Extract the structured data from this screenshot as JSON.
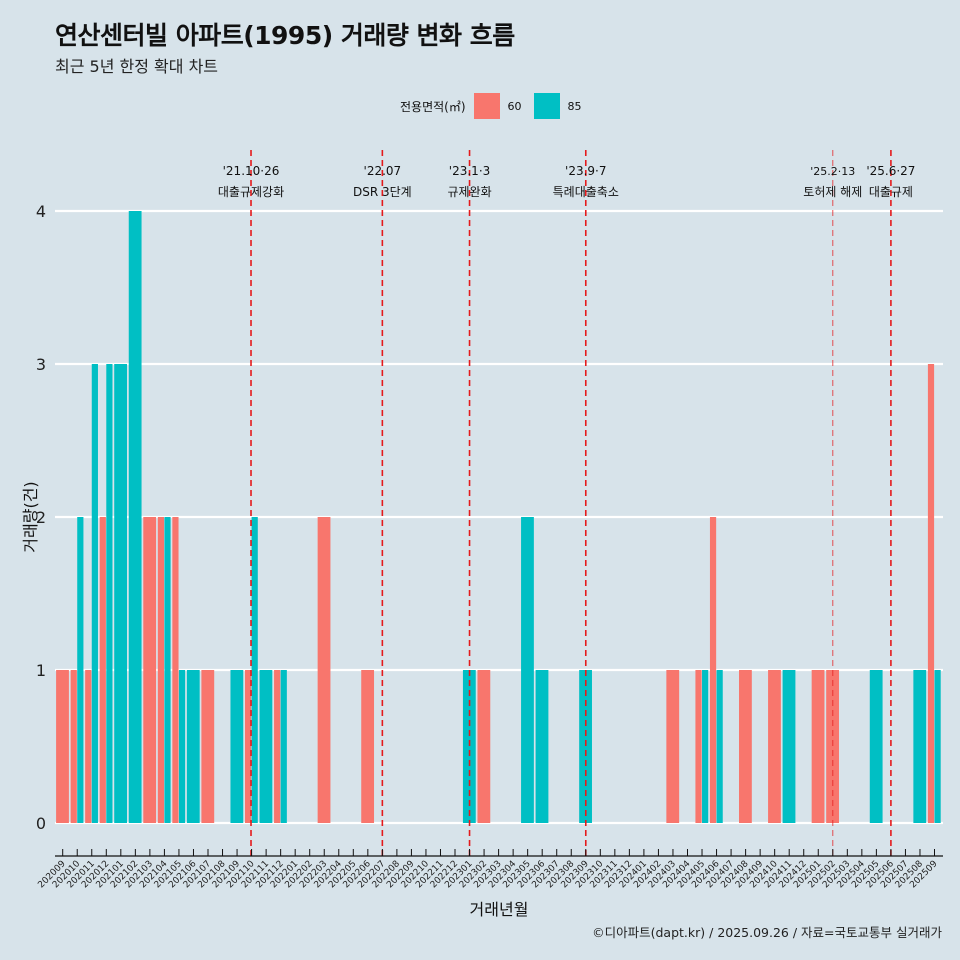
{
  "header": {
    "title": "연산센터빌 아파트(1995) 거래량 변화 흐름",
    "subtitle": "최근 5년 한정 확대 차트"
  },
  "legend": {
    "title": "전용면적(㎡)",
    "items": [
      {
        "label": "60",
        "color": "#f8766d"
      },
      {
        "label": "85",
        "color": "#00bfc4"
      }
    ]
  },
  "caption": "©디아파트(dapt.kr) / 2025.09.26 / 자료=국토교통부 실거래가",
  "chart_data": {
    "type": "bar",
    "title": "연산센터빌 아파트(1995) 거래량 변화 흐름",
    "subtitle": "최근 5년 한정 확대 차트",
    "xlabel": "거래년월",
    "ylabel": "거래량(건)",
    "ylim": [
      0,
      4
    ],
    "yticks": [
      0,
      1,
      2,
      3,
      4
    ],
    "grid": "horizontal",
    "legend_position": "top",
    "bar_mode": "dodge",
    "categories": [
      "202009",
      "202010",
      "202011",
      "202012",
      "202101",
      "202102",
      "202103",
      "202104",
      "202105",
      "202106",
      "202107",
      "202108",
      "202109",
      "202110",
      "202111",
      "202112",
      "202201",
      "202202",
      "202203",
      "202204",
      "202205",
      "202206",
      "202207",
      "202208",
      "202209",
      "202210",
      "202211",
      "202212",
      "202301",
      "202302",
      "202303",
      "202304",
      "202305",
      "202306",
      "202307",
      "202308",
      "202309",
      "202310",
      "202311",
      "202312",
      "202401",
      "202402",
      "202403",
      "202404",
      "202405",
      "202406",
      "202407",
      "202408",
      "202409",
      "202410",
      "202411",
      "202412",
      "202501",
      "202502",
      "202503",
      "202504",
      "202505",
      "202506",
      "202507",
      "202508",
      "202509"
    ],
    "series": [
      {
        "name": "60",
        "color": "#f8766d",
        "values": {
          "202009": 1,
          "202010": 1,
          "202011": 1,
          "202012": 2,
          "202103": 2,
          "202104": 2,
          "202105": 2,
          "202107": 1,
          "202110": 1,
          "202112": 1,
          "202203": 2,
          "202206": 1,
          "202302": 1,
          "202403": 1,
          "202405": 1,
          "202406": 2,
          "202408": 1,
          "202410": 1,
          "202501": 1,
          "202502": 1,
          "202509": 3
        }
      },
      {
        "name": "85",
        "color": "#00bfc4",
        "values": {
          "202010": 2,
          "202011": 3,
          "202012": 3,
          "202101": 3,
          "202102": 4,
          "202104": 2,
          "202105": 1,
          "202106": 1,
          "202109": 1,
          "202110": 2,
          "202111": 1,
          "202112": 1,
          "202301": 1,
          "202305": 2,
          "202306": 1,
          "202309": 1,
          "202405": 1,
          "202406": 1,
          "202411": 1,
          "202505": 1,
          "202508": 1,
          "202509": 1
        }
      }
    ],
    "events": [
      {
        "date": "'21.10·26",
        "label": "대출규제강화",
        "month_pos": 12.96,
        "style": "strong"
      },
      {
        "date": "'22.07",
        "label": "DSR 3단계",
        "month_pos": 22.0,
        "style": "strong"
      },
      {
        "date": "'23.1·3",
        "label": "규제완화",
        "month_pos": 28.0,
        "style": "strong"
      },
      {
        "date": "'23.9·7",
        "label": "특례대출축소",
        "month_pos": 36.0,
        "style": "strong"
      },
      {
        "date": "'25.2·13",
        "label": "토허제 해제",
        "month_pos": 53.0,
        "style": "light"
      },
      {
        "date": "'25.6·27",
        "label": "대출규제",
        "month_pos": 57.0,
        "style": "strong"
      }
    ],
    "event_color": "#e41a1c"
  }
}
